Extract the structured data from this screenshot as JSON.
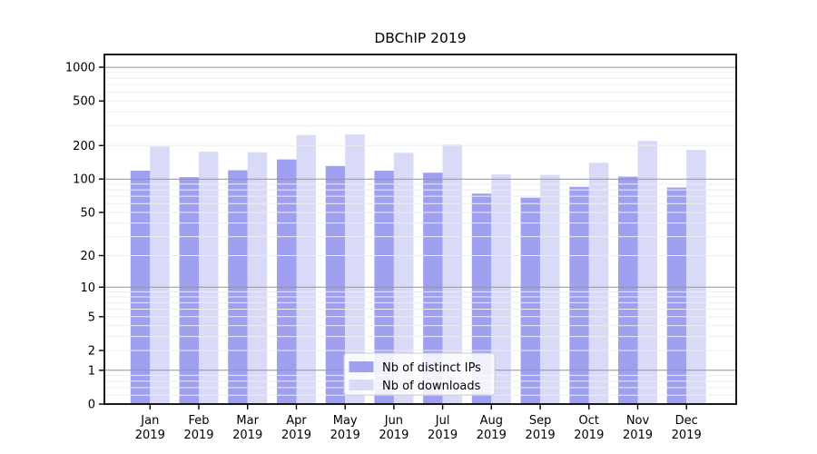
{
  "page": {
    "background": "#ffffff"
  },
  "chart_data": {
    "type": "bar",
    "title": "DBChIP 2019",
    "categories": [
      "Jan",
      "Feb",
      "Mar",
      "Apr",
      "May",
      "Jun",
      "Jul",
      "Aug",
      "Sep",
      "Oct",
      "Nov",
      "Dec"
    ],
    "x_sublabel": "2019",
    "series": [
      {
        "name": "Nb of distinct IPs",
        "color": "#a0a0f0",
        "values": [
          119,
          104,
          120,
          150,
          131,
          119,
          114,
          74,
          68,
          85,
          105,
          84
        ]
      },
      {
        "name": "Nb of downloads",
        "color": "#d9d9f8",
        "values": [
          196,
          176,
          174,
          248,
          252,
          172,
          204,
          110,
          109,
          140,
          220,
          183
        ]
      }
    ],
    "yaxis": {
      "scale": "log1p",
      "ticks": [
        0,
        1,
        2,
        5,
        10,
        20,
        50,
        100,
        200,
        500,
        1000
      ],
      "plot_max": 1300
    },
    "xlabel": "",
    "ylabel": "",
    "grid": {
      "on": true,
      "minor_color": "#ededef",
      "power_color": "#949494"
    },
    "frame_color": "#000000",
    "text_color": "#000000",
    "legend": {
      "position": "bottom-center",
      "background": "rgba(255,255,255,0.85)",
      "border_color": "#cccccc"
    }
  }
}
